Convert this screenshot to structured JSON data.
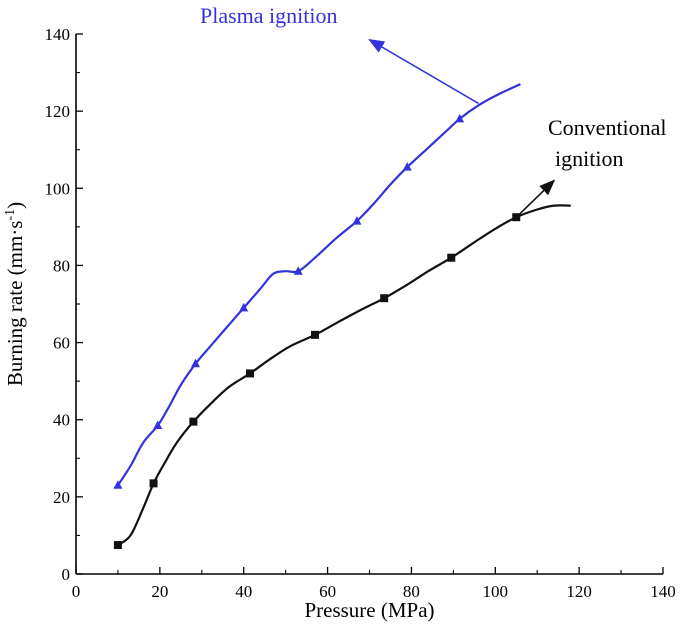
{
  "chart_data": {
    "type": "line",
    "xlabel": "Pressure (MPa)",
    "ylabel": "Burning rate (mm·s",
    "ylabel_superscript": "-1",
    "ylabel_close": ")",
    "xlim": [
      0,
      140
    ],
    "ylim": [
      0,
      140
    ],
    "x_ticks": [
      0,
      20,
      40,
      60,
      80,
      100,
      120,
      140
    ],
    "y_ticks": [
      0,
      20,
      40,
      60,
      80,
      100,
      120,
      140
    ],
    "grid": false,
    "series": [
      {
        "name": "Plasma ignition",
        "color": "#3333dd",
        "marker": "triangle",
        "points": [
          [
            10,
            23
          ],
          [
            19.5,
            38.5
          ],
          [
            28.5,
            54.5
          ],
          [
            40,
            69
          ],
          [
            53,
            78.5
          ],
          [
            67,
            91.5
          ],
          [
            79,
            105.5
          ],
          [
            91.5,
            118
          ]
        ],
        "curve": [
          [
            10,
            23
          ],
          [
            13,
            28
          ],
          [
            16,
            34
          ],
          [
            19.5,
            38.5
          ],
          [
            22,
            43
          ],
          [
            25,
            49
          ],
          [
            28.5,
            54.5
          ],
          [
            32,
            59
          ],
          [
            36,
            64
          ],
          [
            40,
            69
          ],
          [
            44,
            74
          ],
          [
            47,
            77.8
          ],
          [
            50,
            78.5
          ],
          [
            53,
            78.5
          ],
          [
            57,
            82
          ],
          [
            62,
            87
          ],
          [
            67,
            91.5
          ],
          [
            71,
            96
          ],
          [
            75,
            101
          ],
          [
            79,
            105.5
          ],
          [
            84,
            110.5
          ],
          [
            88,
            114.5
          ],
          [
            91.5,
            118
          ],
          [
            96,
            121.5
          ],
          [
            101,
            124.5
          ],
          [
            106,
            127
          ]
        ],
        "annotation": {
          "text": "Plasma ignition",
          "arrow_from": [
            96,
            122
          ],
          "arrow_to": [
            70,
            138.5
          ]
        }
      },
      {
        "name": "Conventional ignition",
        "color": "#111111",
        "marker": "square",
        "points": [
          [
            10,
            7.5
          ],
          [
            18.5,
            23.5
          ],
          [
            28,
            39.5
          ],
          [
            41.5,
            52
          ],
          [
            57,
            62
          ],
          [
            73.5,
            71.5
          ],
          [
            89.5,
            82
          ],
          [
            105,
            92.5
          ]
        ],
        "curve": [
          [
            10,
            7.5
          ],
          [
            13,
            10
          ],
          [
            16,
            17
          ],
          [
            18.5,
            23.5
          ],
          [
            21,
            28.5
          ],
          [
            24,
            34
          ],
          [
            28,
            39.5
          ],
          [
            32,
            44
          ],
          [
            36.5,
            48.5
          ],
          [
            41.5,
            52
          ],
          [
            46,
            55.5
          ],
          [
            51,
            59
          ],
          [
            57,
            62
          ],
          [
            62,
            65
          ],
          [
            68,
            68.5
          ],
          [
            73.5,
            71.5
          ],
          [
            79,
            75
          ],
          [
            84,
            78.5
          ],
          [
            89.5,
            82
          ],
          [
            95,
            86
          ],
          [
            100,
            89.5
          ],
          [
            105,
            92.5
          ],
          [
            110,
            94.5
          ],
          [
            114,
            95.5
          ],
          [
            118,
            95.5
          ]
        ],
        "annotation": {
          "text_lines": [
            "Conventional",
            "ignition"
          ],
          "arrow_from": [
            105.5,
            93
          ],
          "arrow_to": [
            114,
            102
          ]
        }
      }
    ]
  }
}
